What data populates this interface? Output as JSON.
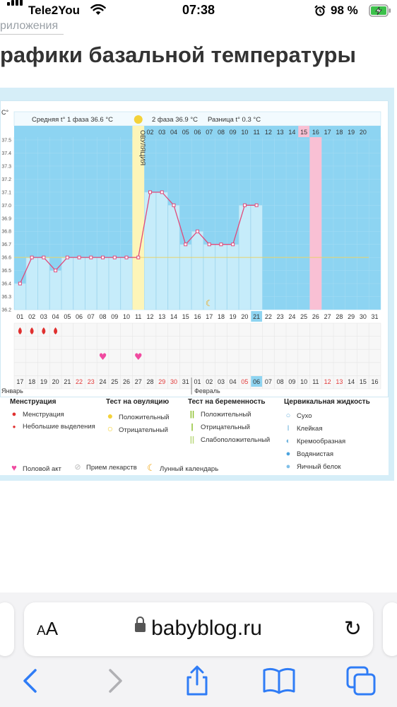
{
  "status_bar": {
    "carrier": "Tele2You",
    "time": "07:38",
    "battery": "98 %"
  },
  "page": {
    "breadcrumb": "риложения",
    "title": "рафики базальной температуры"
  },
  "chart": {
    "unit_label": "C°",
    "phase1_label": "Средняя t° 1 фаза 36.6 °C",
    "phase2_label": "2 фаза 36.9 °C",
    "diff_label": "Разница t° 0.3 °C",
    "ovulation_label": "ОВУЛЯЦИЯ"
  },
  "chart_data": {
    "type": "line",
    "y_ticks": [
      "37.5",
      "37.4",
      "37.3",
      "37.2",
      "37.1",
      "37.0",
      "36.9",
      "36.8",
      "36.7",
      "36.6",
      "36.5",
      "36.4",
      "36.3",
      "36.2"
    ],
    "ylim": [
      36.2,
      37.5
    ],
    "cycle_days": [
      "01",
      "02",
      "03",
      "04",
      "05",
      "06",
      "07",
      "08",
      "09",
      "10",
      "11",
      "12",
      "13",
      "14",
      "15",
      "16",
      "17",
      "18",
      "19",
      "20",
      "21",
      "22",
      "23",
      "24",
      "25",
      "26",
      "27",
      "28",
      "29",
      "30",
      "31"
    ],
    "top_row": [
      "",
      "",
      "",
      "",
      "",
      "",
      "",
      "",
      "",
      "",
      "01",
      "02",
      "03",
      "04",
      "05",
      "06",
      "07",
      "08",
      "09",
      "10",
      "11",
      "12",
      "13",
      "14",
      "15",
      "16",
      "17",
      "18",
      "19",
      "20",
      ""
    ],
    "top_row_highlight": "15",
    "cycle_day_current": "21",
    "temperatures": [
      36.4,
      36.6,
      36.6,
      36.5,
      36.6,
      36.6,
      36.6,
      36.6,
      36.6,
      36.6,
      36.6,
      37.1,
      37.1,
      37.0,
      36.7,
      36.8,
      36.7,
      36.7,
      36.7,
      37.0,
      37.0
    ],
    "coverline": 36.6,
    "ovulation_day": 11,
    "pink_day": 26,
    "menstruation_days": [
      1,
      2,
      3,
      4
    ],
    "intercourse_days": [
      8,
      11
    ],
    "moon_day": 17,
    "calendar_dates": [
      "17",
      "18",
      "19",
      "20",
      "21",
      "22",
      "23",
      "24",
      "25",
      "26",
      "27",
      "28",
      "29",
      "30",
      "31",
      "01",
      "02",
      "03",
      "04",
      "05",
      "06",
      "07",
      "08",
      "09",
      "10",
      "11",
      "12",
      "13",
      "14",
      "15",
      "16"
    ],
    "calendar_weekend_dates": [
      "22",
      "23",
      "29",
      "30",
      "05",
      "12",
      "13"
    ],
    "calendar_today": "06",
    "month_january": "Январь",
    "month_february": "Февраль",
    "colors": {
      "sky": "#8dd4f2",
      "bar": "#c6ecfa",
      "line": "#e04a7a",
      "ovulation": "#fdf5b8",
      "pink": "#f9c0d4",
      "header": "#8ed4f1"
    }
  },
  "legend": {
    "menstruation": {
      "title": "Менструация",
      "items": [
        "Менструация",
        "Небольшие выделения"
      ]
    },
    "ovulation_test": {
      "title": "Тест на овуляцию",
      "items": [
        "Положительный",
        "Отрицательный"
      ]
    },
    "pregnancy_test": {
      "title": "Тест на беременность",
      "items": [
        "Положительный",
        "Отрицательный",
        "Слабоположительный"
      ]
    },
    "cervical": {
      "title": "Цервикальная жидкость",
      "items": [
        "Сухо",
        "Клейкая",
        "Кремообразная",
        "Водянистая",
        "Яичный белок"
      ]
    },
    "bottom": [
      "Половой акт",
      "Прием лекарств",
      "Лунный календарь"
    ]
  },
  "browser": {
    "aa": "AA",
    "url": "babyblog.ru"
  }
}
